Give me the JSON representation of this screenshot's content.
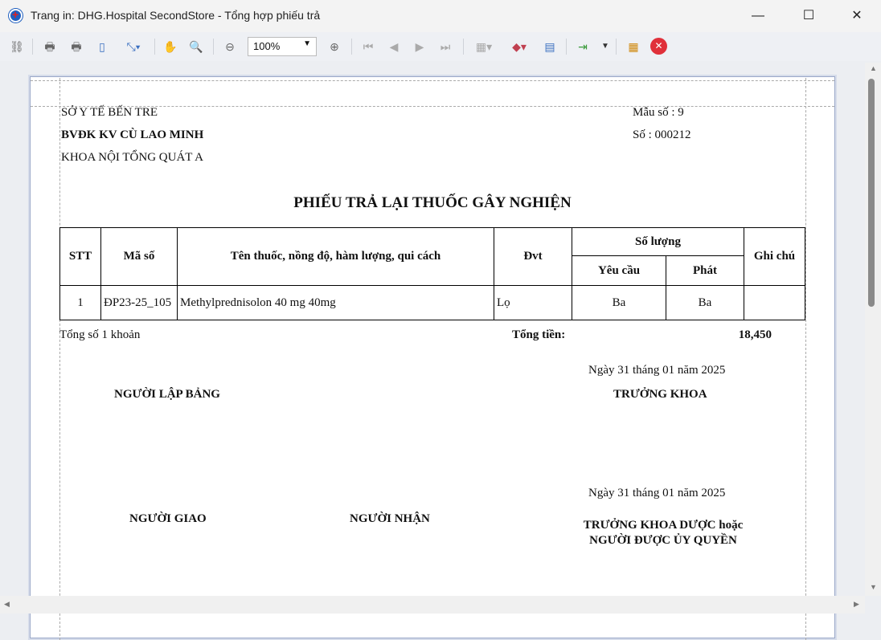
{
  "window": {
    "title": "Trang in: DHG.Hospital SecondStore - Tổng hợp phiếu trả",
    "minimize": "—",
    "maximize": "☐",
    "close": "✕"
  },
  "toolbar": {
    "zoom_value": "100%",
    "icons": [
      "find-icon",
      "print-icon",
      "quick-print-icon",
      "page-setup-icon",
      "scale-icon",
      "hand-tool-icon",
      "magnifier-icon",
      "zoom-out-icon",
      "zoom-in-icon",
      "first-page-icon",
      "previous-page-icon",
      "next-page-icon",
      "last-page-icon",
      "multiple-pages-icon",
      "background-color-icon",
      "watermark-icon",
      "export-icon",
      "parameters-icon",
      "close-preview-icon"
    ]
  },
  "report": {
    "org1": "SỞ Y TẾ BẾN TRE",
    "org2": "BVĐK KV CÙ LAO MINH",
    "org3": "KHOA NỘI TỔNG QUÁT A",
    "form_no": "Mẫu số : 9",
    "number": "Số : 000212",
    "title": "PHIẾU TRẢ LẠI THUỐC GÂY NGHIỆN",
    "headers": {
      "stt": "STT",
      "code": "Mã số",
      "name": "Tên thuốc, nồng độ, hàm lượng, qui cách",
      "unit": "Đvt",
      "qty": "Số lượng",
      "requested": "Yêu cầu",
      "issued": "Phát",
      "note": "Ghi chú"
    },
    "rows": [
      {
        "stt": "1",
        "code": "ĐP23-25_105",
        "name": "Methylprednisolon 40 mg 40mg",
        "unit": "Lọ",
        "requested": "Ba",
        "issued": "Ba",
        "note": ""
      }
    ],
    "total_items": "Tổng số 1 khoản",
    "total_label": "Tổng tiền:",
    "total_value": "18,450",
    "date1": "Ngày 31 tháng 01 năm 2025",
    "preparer": "NGƯỜI LẬP BẢNG",
    "head": "TRƯỞNG KHOA",
    "date2": "Ngày 31 tháng 01 năm 2025",
    "deliverer": "NGƯỜI GIAO",
    "receiver": "NGƯỜI NHẬN",
    "pharm_head1": "TRƯỞNG KHOA DƯỢC hoặc",
    "pharm_head2": "NGƯỜI ĐƯỢC ỦY QUYỀN"
  }
}
